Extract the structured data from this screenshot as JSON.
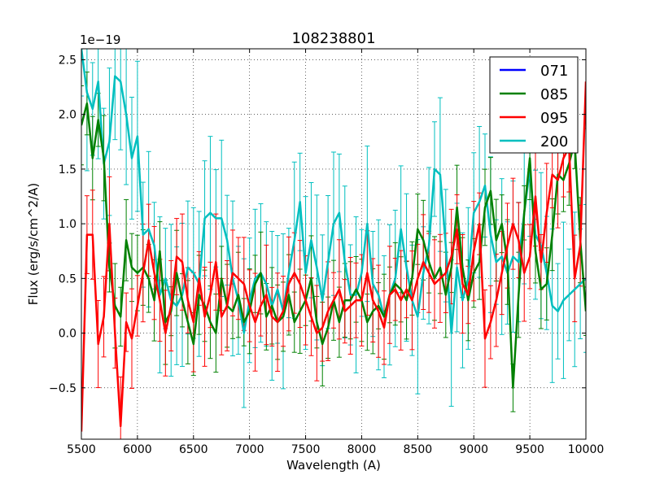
{
  "chart_data": {
    "type": "line",
    "title": "108238801",
    "xlabel": "Wavelength (A)",
    "ylabel": "Flux (erg/s/cm^2/A)",
    "y_offset_label": "1e−19",
    "xlim": [
      5500,
      10000
    ],
    "ylim": [
      -0.97,
      2.6
    ],
    "xticks": [
      5500,
      6000,
      6500,
      7000,
      7500,
      8000,
      8500,
      9000,
      9500,
      10000
    ],
    "yticks": [
      -0.5,
      0.0,
      0.5,
      1.0,
      1.5,
      2.0,
      2.5
    ],
    "ytick_labels": [
      "−0.5",
      "0.0",
      "0.5",
      "1.0",
      "1.5",
      "2.0",
      "2.5"
    ],
    "grid": true,
    "legend_position": "top-right",
    "series": [
      {
        "name": "071",
        "color": "#0000ff",
        "x": [],
        "y": [],
        "err": 0
      },
      {
        "name": "085",
        "color": "#008000",
        "x": [
          5500,
          5550,
          5600,
          5650,
          5700,
          5750,
          5800,
          5850,
          5900,
          5950,
          6000,
          6050,
          6100,
          6150,
          6200,
          6250,
          6300,
          6350,
          6400,
          6450,
          6500,
          6550,
          6600,
          6650,
          6700,
          6750,
          6800,
          6850,
          6900,
          6950,
          7000,
          7050,
          7100,
          7150,
          7200,
          7250,
          7300,
          7350,
          7400,
          7450,
          7500,
          7550,
          7600,
          7650,
          7700,
          7750,
          7800,
          7850,
          7900,
          7950,
          8000,
          8050,
          8100,
          8150,
          8200,
          8250,
          8300,
          8350,
          8400,
          8450,
          8500,
          8550,
          8600,
          8650,
          8700,
          8750,
          8800,
          8850,
          8900,
          8950,
          9000,
          9050,
          9100,
          9150,
          9200,
          9250,
          9300,
          9350,
          9400,
          9450,
          9500,
          9550,
          9600,
          9650,
          9700,
          9750,
          9800,
          9850,
          9900,
          9950,
          10000
        ],
        "y": [
          1.9,
          2.1,
          1.6,
          1.95,
          1.6,
          0.6,
          0.25,
          0.15,
          0.85,
          0.6,
          0.55,
          0.6,
          0.5,
          0.3,
          0.75,
          0.1,
          0.2,
          0.55,
          0.3,
          0.1,
          -0.1,
          0.35,
          0.25,
          0.1,
          0.0,
          0.5,
          0.25,
          0.2,
          0.35,
          0.1,
          0.2,
          0.45,
          0.55,
          0.15,
          0.25,
          0.1,
          0.15,
          0.35,
          0.1,
          0.2,
          0.3,
          0.5,
          0.1,
          -0.1,
          0.05,
          0.3,
          0.1,
          0.3,
          0.3,
          0.4,
          0.3,
          0.1,
          0.2,
          0.25,
          0.15,
          0.35,
          0.45,
          0.4,
          0.3,
          0.5,
          0.95,
          0.85,
          0.65,
          0.5,
          0.6,
          0.35,
          0.6,
          1.15,
          0.6,
          0.3,
          0.55,
          0.65,
          1.15,
          1.3,
          0.85,
          1.0,
          0.65,
          -0.5,
          0.35,
          1.1,
          1.6,
          0.75,
          0.4,
          0.45,
          0.9,
          1.45,
          1.4,
          1.55,
          1.75,
          0.85,
          0.2
        ],
        "err": 0.3
      },
      {
        "name": "095",
        "color": "#ff0000",
        "x": [
          5500,
          5550,
          5600,
          5650,
          5700,
          5750,
          5800,
          5850,
          5900,
          5950,
          6000,
          6050,
          6100,
          6150,
          6200,
          6250,
          6300,
          6350,
          6400,
          6450,
          6500,
          6550,
          6600,
          6650,
          6700,
          6750,
          6800,
          6850,
          6900,
          6950,
          7000,
          7050,
          7100,
          7150,
          7200,
          7250,
          7300,
          7350,
          7400,
          7450,
          7500,
          7550,
          7600,
          7650,
          7700,
          7750,
          7800,
          7850,
          7900,
          7950,
          8000,
          8050,
          8100,
          8150,
          8200,
          8250,
          8300,
          8350,
          8400,
          8450,
          8500,
          8550,
          8600,
          8650,
          8700,
          8750,
          8800,
          8850,
          8900,
          8950,
          9000,
          9050,
          9100,
          9150,
          9200,
          9250,
          9300,
          9350,
          9400,
          9450,
          9500,
          9550,
          9600,
          9650,
          9700,
          9750,
          9800,
          9850,
          9900,
          9950,
          10000
        ],
        "y": [
          -0.9,
          0.9,
          0.9,
          -0.1,
          0.15,
          1.0,
          0.0,
          -0.85,
          0.1,
          -0.05,
          0.25,
          0.55,
          0.85,
          0.55,
          0.3,
          0.0,
          0.25,
          0.7,
          0.65,
          0.3,
          0.1,
          0.5,
          0.15,
          0.35,
          0.65,
          0.15,
          0.25,
          0.55,
          0.5,
          0.45,
          0.25,
          0.1,
          0.25,
          0.35,
          0.15,
          0.1,
          0.2,
          0.45,
          0.55,
          0.45,
          0.3,
          0.15,
          0.0,
          0.05,
          0.2,
          0.3,
          0.4,
          0.2,
          0.25,
          0.3,
          0.3,
          0.55,
          0.3,
          0.2,
          0.05,
          0.35,
          0.4,
          0.3,
          0.4,
          0.3,
          0.5,
          0.65,
          0.55,
          0.45,
          0.5,
          0.55,
          0.7,
          0.95,
          0.45,
          0.35,
          0.75,
          1.0,
          -0.05,
          0.1,
          0.3,
          0.55,
          0.8,
          1.0,
          0.85,
          0.55,
          0.7,
          1.25,
          0.65,
          1.1,
          1.45,
          1.4,
          1.6,
          1.7,
          0.5,
          0.8,
          2.3
        ],
        "err": 0.35
      },
      {
        "name": "200",
        "color": "#00bfbf",
        "x": [
          5500,
          5550,
          5600,
          5650,
          5700,
          5750,
          5800,
          5850,
          5900,
          5950,
          6000,
          6050,
          6100,
          6150,
          6200,
          6250,
          6300,
          6350,
          6400,
          6450,
          6500,
          6550,
          6600,
          6650,
          6700,
          6750,
          6800,
          6850,
          6900,
          6950,
          7000,
          7050,
          7100,
          7150,
          7200,
          7250,
          7300,
          7350,
          7400,
          7450,
          7500,
          7550,
          7600,
          7650,
          7700,
          7750,
          7800,
          7850,
          7900,
          7950,
          8000,
          8050,
          8100,
          8150,
          8200,
          8250,
          8300,
          8350,
          8400,
          8450,
          8500,
          8550,
          8600,
          8650,
          8700,
          8750,
          8800,
          8850,
          8900,
          8950,
          9000,
          9050,
          9100,
          9150,
          9200,
          9250,
          9300,
          9350,
          9400,
          9450,
          9500,
          9550,
          9600,
          9650,
          9700,
          9750,
          9800,
          9850,
          9900,
          9950,
          10000
        ],
        "y": [
          2.6,
          2.2,
          2.05,
          2.3,
          1.55,
          1.75,
          2.35,
          2.3,
          2.0,
          1.6,
          1.8,
          0.9,
          0.95,
          0.8,
          0.35,
          0.5,
          0.3,
          0.25,
          0.35,
          0.6,
          0.55,
          0.45,
          1.05,
          1.1,
          1.05,
          1.05,
          0.85,
          0.5,
          0.3,
          0.0,
          0.3,
          0.5,
          0.55,
          0.45,
          0.25,
          0.4,
          0.2,
          0.55,
          0.85,
          1.2,
          0.55,
          0.85,
          0.6,
          0.3,
          0.65,
          1.0,
          1.1,
          0.65,
          0.35,
          0.35,
          0.55,
          1.0,
          0.45,
          0.35,
          0.15,
          0.35,
          0.5,
          0.95,
          0.6,
          0.3,
          0.15,
          0.55,
          0.8,
          1.5,
          1.45,
          0.8,
          0.0,
          0.6,
          0.3,
          0.5,
          1.1,
          1.2,
          1.35,
          0.9,
          0.65,
          0.7,
          0.55,
          0.7,
          0.65,
          1.1,
          1.5,
          0.9,
          0.8,
          0.55,
          0.25,
          0.2,
          0.3,
          0.35,
          0.4,
          0.45,
          0.5
        ],
        "err": 0.55
      }
    ]
  }
}
